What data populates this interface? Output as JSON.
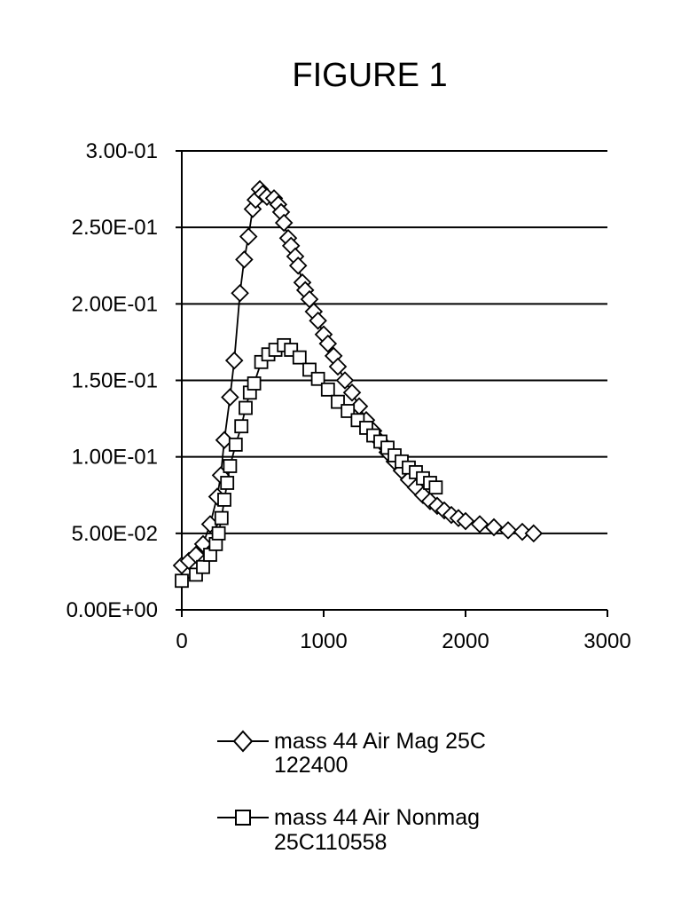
{
  "chart_data": {
    "type": "scatter",
    "title": "FIGURE 1",
    "xlabel": "",
    "ylabel": "",
    "xlim": [
      0,
      3000
    ],
    "ylim": [
      0,
      0.3
    ],
    "x_ticks": [
      "0",
      "1000",
      "2000",
      "3000"
    ],
    "y_ticks": [
      "0.00E+00",
      "5.00E-02",
      "1.00E-01",
      "1.50E-01",
      "2.00E-01",
      "2.50E-01",
      "3.00-01"
    ],
    "grid": "horizontal",
    "legend_position": "bottom",
    "series": [
      {
        "legend_lines": [
          "mass 44 Air Mag 25C",
          "122400"
        ],
        "marker": "diamond",
        "points": [
          [
            0,
            0.029
          ],
          [
            50,
            0.032
          ],
          [
            100,
            0.036
          ],
          [
            150,
            0.043
          ],
          [
            200,
            0.056
          ],
          [
            250,
            0.074
          ],
          [
            275,
            0.088
          ],
          [
            300,
            0.111
          ],
          [
            340,
            0.139
          ],
          [
            370,
            0.163
          ],
          [
            410,
            0.207
          ],
          [
            440,
            0.229
          ],
          [
            470,
            0.244
          ],
          [
            500,
            0.262
          ],
          [
            520,
            0.268
          ],
          [
            550,
            0.275
          ],
          [
            570,
            0.272
          ],
          [
            600,
            0.27
          ],
          [
            650,
            0.269
          ],
          [
            680,
            0.265
          ],
          [
            700,
            0.26
          ],
          [
            720,
            0.253
          ],
          [
            750,
            0.243
          ],
          [
            770,
            0.238
          ],
          [
            800,
            0.231
          ],
          [
            820,
            0.225
          ],
          [
            850,
            0.214
          ],
          [
            870,
            0.209
          ],
          [
            900,
            0.203
          ],
          [
            930,
            0.195
          ],
          [
            960,
            0.189
          ],
          [
            1000,
            0.18
          ],
          [
            1030,
            0.174
          ],
          [
            1070,
            0.166
          ],
          [
            1100,
            0.159
          ],
          [
            1150,
            0.15
          ],
          [
            1200,
            0.142
          ],
          [
            1250,
            0.133
          ],
          [
            1300,
            0.124
          ],
          [
            1350,
            0.117
          ],
          [
            1400,
            0.11
          ],
          [
            1450,
            0.103
          ],
          [
            1500,
            0.097
          ],
          [
            1550,
            0.091
          ],
          [
            1600,
            0.085
          ],
          [
            1650,
            0.08
          ],
          [
            1700,
            0.075
          ],
          [
            1750,
            0.071
          ],
          [
            1800,
            0.068
          ],
          [
            1850,
            0.065
          ],
          [
            1900,
            0.062
          ],
          [
            1950,
            0.06
          ],
          [
            2000,
            0.058
          ],
          [
            2100,
            0.056
          ],
          [
            2200,
            0.054
          ],
          [
            2300,
            0.052
          ],
          [
            2400,
            0.051
          ],
          [
            2480,
            0.05
          ]
        ]
      },
      {
        "legend_lines": [
          "mass 44 Air Nonmag",
          "25C110558"
        ],
        "marker": "square",
        "points": [
          [
            0,
            0.019
          ],
          [
            100,
            0.023
          ],
          [
            150,
            0.028
          ],
          [
            200,
            0.036
          ],
          [
            240,
            0.043
          ],
          [
            260,
            0.05
          ],
          [
            280,
            0.06
          ],
          [
            300,
            0.072
          ],
          [
            320,
            0.083
          ],
          [
            340,
            0.094
          ],
          [
            380,
            0.108
          ],
          [
            420,
            0.12
          ],
          [
            450,
            0.132
          ],
          [
            480,
            0.142
          ],
          [
            510,
            0.148
          ],
          [
            560,
            0.162
          ],
          [
            610,
            0.167
          ],
          [
            660,
            0.17
          ],
          [
            720,
            0.173
          ],
          [
            770,
            0.17
          ],
          [
            830,
            0.165
          ],
          [
            900,
            0.157
          ],
          [
            960,
            0.151
          ],
          [
            1030,
            0.144
          ],
          [
            1100,
            0.136
          ],
          [
            1170,
            0.13
          ],
          [
            1240,
            0.124
          ],
          [
            1300,
            0.119
          ],
          [
            1350,
            0.114
          ],
          [
            1400,
            0.11
          ],
          [
            1450,
            0.106
          ],
          [
            1500,
            0.101
          ],
          [
            1550,
            0.097
          ],
          [
            1600,
            0.093
          ],
          [
            1650,
            0.09
          ],
          [
            1700,
            0.086
          ],
          [
            1750,
            0.083
          ],
          [
            1790,
            0.08
          ]
        ]
      }
    ]
  }
}
